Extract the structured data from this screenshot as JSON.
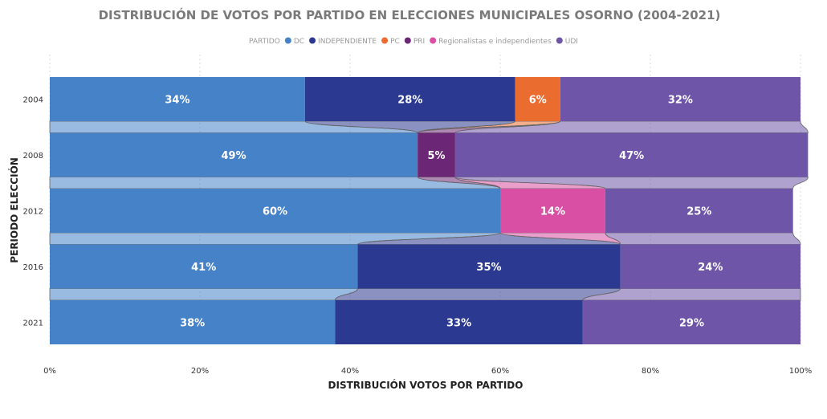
{
  "chart_data": {
    "type": "bar",
    "orientation": "horizontal",
    "stacked": "100%",
    "title": "DISTRIBUCIÓN DE VOTOS POR PARTIDO EN ELECCIONES MUNICIPALES OSORNO (2004-2021)",
    "legend_title": "PARTIDO",
    "legend_position": "top",
    "xlabel": "DISTRIBUCIÓN VOTOS POR PARTIDO",
    "ylabel": "PERIODO ELECCIÓN",
    "xlim": [
      0,
      100
    ],
    "x_ticks": [
      "0%",
      "20%",
      "40%",
      "60%",
      "80%",
      "100%"
    ],
    "grid": true,
    "categories": [
      "2004",
      "2008",
      "2012",
      "2016",
      "2021"
    ],
    "series": [
      {
        "name": "DC",
        "color": "#4682c8",
        "values": [
          34,
          49,
          60,
          41,
          38
        ],
        "labels": [
          "34%",
          "49%",
          "60%",
          "41%",
          "38%"
        ]
      },
      {
        "name": "INDEPENDIENTE",
        "color": "#2b3990",
        "values": [
          28,
          0,
          0,
          35,
          33
        ],
        "labels": [
          "28%",
          "",
          "",
          "35%",
          "33%"
        ]
      },
      {
        "name": "PC",
        "color": "#ea6c2e",
        "values": [
          6,
          0,
          0,
          0,
          0
        ],
        "labels": [
          "6%",
          "",
          "",
          "",
          ""
        ]
      },
      {
        "name": "PRI",
        "color": "#6b2775",
        "values": [
          0,
          5,
          0,
          0,
          0
        ],
        "labels": [
          "",
          "5%",
          "",
          "",
          ""
        ]
      },
      {
        "name": "Regionalistas e independientes",
        "color": "#d94fa3",
        "values": [
          0,
          0,
          14,
          0,
          0
        ],
        "labels": [
          "",
          "",
          "14%",
          "",
          ""
        ]
      },
      {
        "name": "UDI",
        "color": "#6e55a8",
        "values": [
          32,
          47,
          25,
          24,
          29
        ],
        "labels": [
          "32%",
          "47%",
          "25%",
          "24%",
          "29%"
        ]
      }
    ]
  }
}
